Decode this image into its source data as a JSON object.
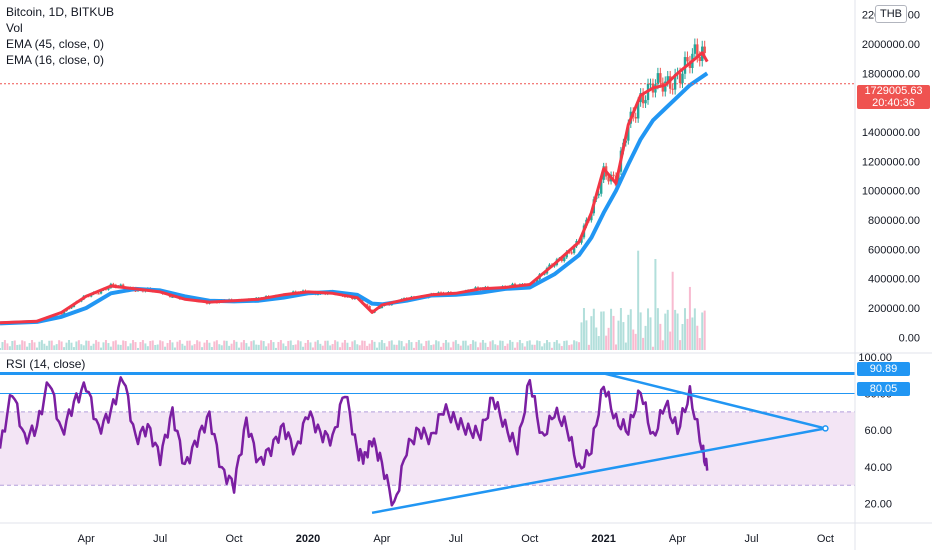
{
  "legend": {
    "symbol": "Bitcoin, 1D, BITKUB",
    "vol": "Vol",
    "ema_slow": "EMA (45, close, 0)",
    "ema_fast": "EMA (16, close, 0)"
  },
  "rsi_title": "RSI (14, close)",
  "unit": "THB",
  "last_price": "1729005.63",
  "countdown": "20:40:36",
  "rsi_levels": {
    "top": "90.89",
    "second": "80.05"
  },
  "colors": {
    "candle_up": "#26a69a",
    "candle_down": "#ef5350",
    "ema_slow": "#2196f3",
    "ema_fast": "#f23645",
    "rsi_line": "#7b1fa2",
    "rsi_band": "#f3e5f5",
    "trendline": "#2196f3",
    "price_line": "#ef5350"
  },
  "chart_data": [
    {
      "type": "line",
      "title": "Bitcoin, 1D, BITKUB",
      "y_unit": "THB",
      "ylim": [
        -100000,
        2300000
      ],
      "y_ticks": [
        "2200000.00",
        "2000000.00",
        "1800000.00",
        "1600000.00",
        "1400000.00",
        "1200000.00",
        "1000000.00",
        "800000.00",
        "600000.00",
        "400000.00",
        "200000.00",
        "0.00"
      ],
      "y_tick_values": [
        2200000,
        2000000,
        1800000,
        1600000,
        1400000,
        1200000,
        1000000,
        800000,
        600000,
        400000,
        200000,
        0
      ],
      "x_ticks": [
        "Apr",
        "Jul",
        "Oct",
        "2020",
        "Apr",
        "Jul",
        "Oct",
        "2021",
        "Apr",
        "Jul",
        "Oct"
      ],
      "x_tick_months": [
        3,
        6,
        9,
        12,
        15,
        18,
        21,
        24,
        27,
        30,
        33
      ],
      "x_range_months": [
        -0.5,
        34.2
      ],
      "last_price": 1729005.63,
      "series": [
        {
          "name": "EMA (45, close, 0)",
          "x": [
            -0.5,
            1,
            2,
            3,
            4,
            5,
            6,
            7,
            8,
            9,
            10,
            11,
            12,
            13,
            14,
            14.6,
            15,
            16,
            17,
            18,
            19,
            20,
            21,
            22,
            23,
            23.5,
            24,
            24.5,
            25,
            25.5,
            26,
            26.5,
            27,
            27.5,
            28.2
          ],
          "values": [
            95000,
            105000,
            140000,
            200000,
            300000,
            330000,
            320000,
            280000,
            250000,
            245000,
            250000,
            270000,
            300000,
            310000,
            290000,
            230000,
            225000,
            250000,
            285000,
            290000,
            305000,
            330000,
            340000,
            430000,
            560000,
            680000,
            850000,
            1000000,
            1180000,
            1350000,
            1480000,
            1560000,
            1640000,
            1720000,
            1800000
          ]
        },
        {
          "name": "EMA (16, close, 0)",
          "x": [
            -0.5,
            1,
            2,
            3,
            4,
            5,
            6,
            7,
            8,
            9,
            10,
            11,
            12,
            13,
            14,
            14.6,
            15,
            16,
            17,
            18,
            19,
            20,
            21,
            22,
            23,
            23.5,
            24,
            24.5,
            25,
            25.5,
            26,
            26.5,
            27,
            27.5,
            28,
            28.2
          ],
          "values": [
            100000,
            110000,
            170000,
            280000,
            350000,
            330000,
            310000,
            260000,
            240000,
            250000,
            260000,
            290000,
            310000,
            300000,
            270000,
            170000,
            220000,
            260000,
            290000,
            300000,
            330000,
            340000,
            360000,
            500000,
            650000,
            850000,
            1150000,
            1050000,
            1450000,
            1650000,
            1700000,
            1720000,
            1800000,
            1870000,
            1940000,
            1880000
          ]
        }
      ]
    },
    {
      "type": "line",
      "title": "RSI (14, close)",
      "ylim": [
        10,
        101
      ],
      "y_ticks": [
        "100.00",
        "80.00",
        "60.00",
        "40.00",
        "20.00"
      ],
      "y_tick_values": [
        100,
        80,
        60,
        40,
        20
      ],
      "band": [
        30,
        70
      ],
      "levels": [
        90.89,
        80.05
      ],
      "series": [
        {
          "name": "RSI (14, close)",
          "x": [
            -0.5,
            0,
            0.5,
            1,
            1.5,
            2,
            2.5,
            3,
            3.5,
            4,
            4.5,
            5,
            5.5,
            6,
            6.5,
            7,
            7.5,
            8,
            8.5,
            9,
            9.5,
            10,
            10.5,
            11,
            11.5,
            12,
            12.5,
            13,
            13.5,
            14,
            14.3,
            14.6,
            15,
            15.5,
            16,
            16.5,
            17,
            17.5,
            18,
            18.5,
            19,
            19.5,
            20,
            20.5,
            21,
            21.5,
            22,
            22.5,
            23,
            23.5,
            24,
            24.5,
            25,
            25.5,
            26,
            26.5,
            27,
            27.5,
            28,
            28.2
          ],
          "values": [
            50,
            82,
            55,
            62,
            88,
            58,
            75,
            85,
            60,
            70,
            90,
            55,
            62,
            45,
            70,
            40,
            55,
            68,
            38,
            30,
            65,
            42,
            50,
            62,
            48,
            70,
            58,
            55,
            82,
            48,
            45,
            55,
            42,
            18,
            50,
            60,
            55,
            72,
            65,
            60,
            58,
            78,
            62,
            50,
            88,
            55,
            70,
            62,
            38,
            50,
            85,
            65,
            60,
            82,
            55,
            75,
            60,
            80,
            50,
            38
          ]
        }
      ]
    }
  ]
}
